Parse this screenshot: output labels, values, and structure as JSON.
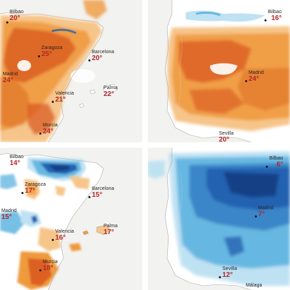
{
  "panels": [
    {
      "cities": [
        {
          "name": "Bilbao",
          "temp": "20°"
        },
        {
          "name": "Zaragoza",
          "temp": "25°"
        },
        {
          "name": "Barcelona",
          "temp": "20°"
        },
        {
          "name": "Madrid",
          "temp": "24°"
        },
        {
          "name": "Valencia",
          "temp": "21°"
        },
        {
          "name": "Palma",
          "temp": "22°"
        },
        {
          "name": "Murcia",
          "temp": "24°"
        }
      ]
    },
    {
      "cities": [
        {
          "name": "Bilbao",
          "temp": "16°"
        },
        {
          "name": "Madrid",
          "temp": "24°"
        },
        {
          "name": "Sevilla",
          "temp": "20°"
        }
      ]
    },
    {
      "cities": [
        {
          "name": "Bilbao",
          "temp": "14°"
        },
        {
          "name": "Zaragoza",
          "temp": "17°"
        },
        {
          "name": "Barcelona",
          "temp": "15°"
        },
        {
          "name": "Madrid",
          "temp": "15°"
        },
        {
          "name": "Valencia",
          "temp": "16°"
        },
        {
          "name": "Palma",
          "temp": "17°"
        },
        {
          "name": "Murcia",
          "temp": "18°"
        }
      ]
    },
    {
      "cities": [
        {
          "name": "Bilbao",
          "temp": "6°"
        },
        {
          "name": "Madrid",
          "temp": "7°"
        },
        {
          "name": "Sevilla",
          "temp": "12°"
        },
        {
          "name": "Málaga",
          "temp": ""
        }
      ]
    }
  ],
  "colors": {
    "warm_light": "#f6c58a",
    "warm_mid": "#ef9a3e",
    "warm_strong": "#d8561c",
    "cool_light": "#bfe2f3",
    "cool_mid": "#66b8e2",
    "cool_strong": "#2462b0",
    "cool_deep": "#123f86",
    "temp_text": "#b3262a"
  }
}
